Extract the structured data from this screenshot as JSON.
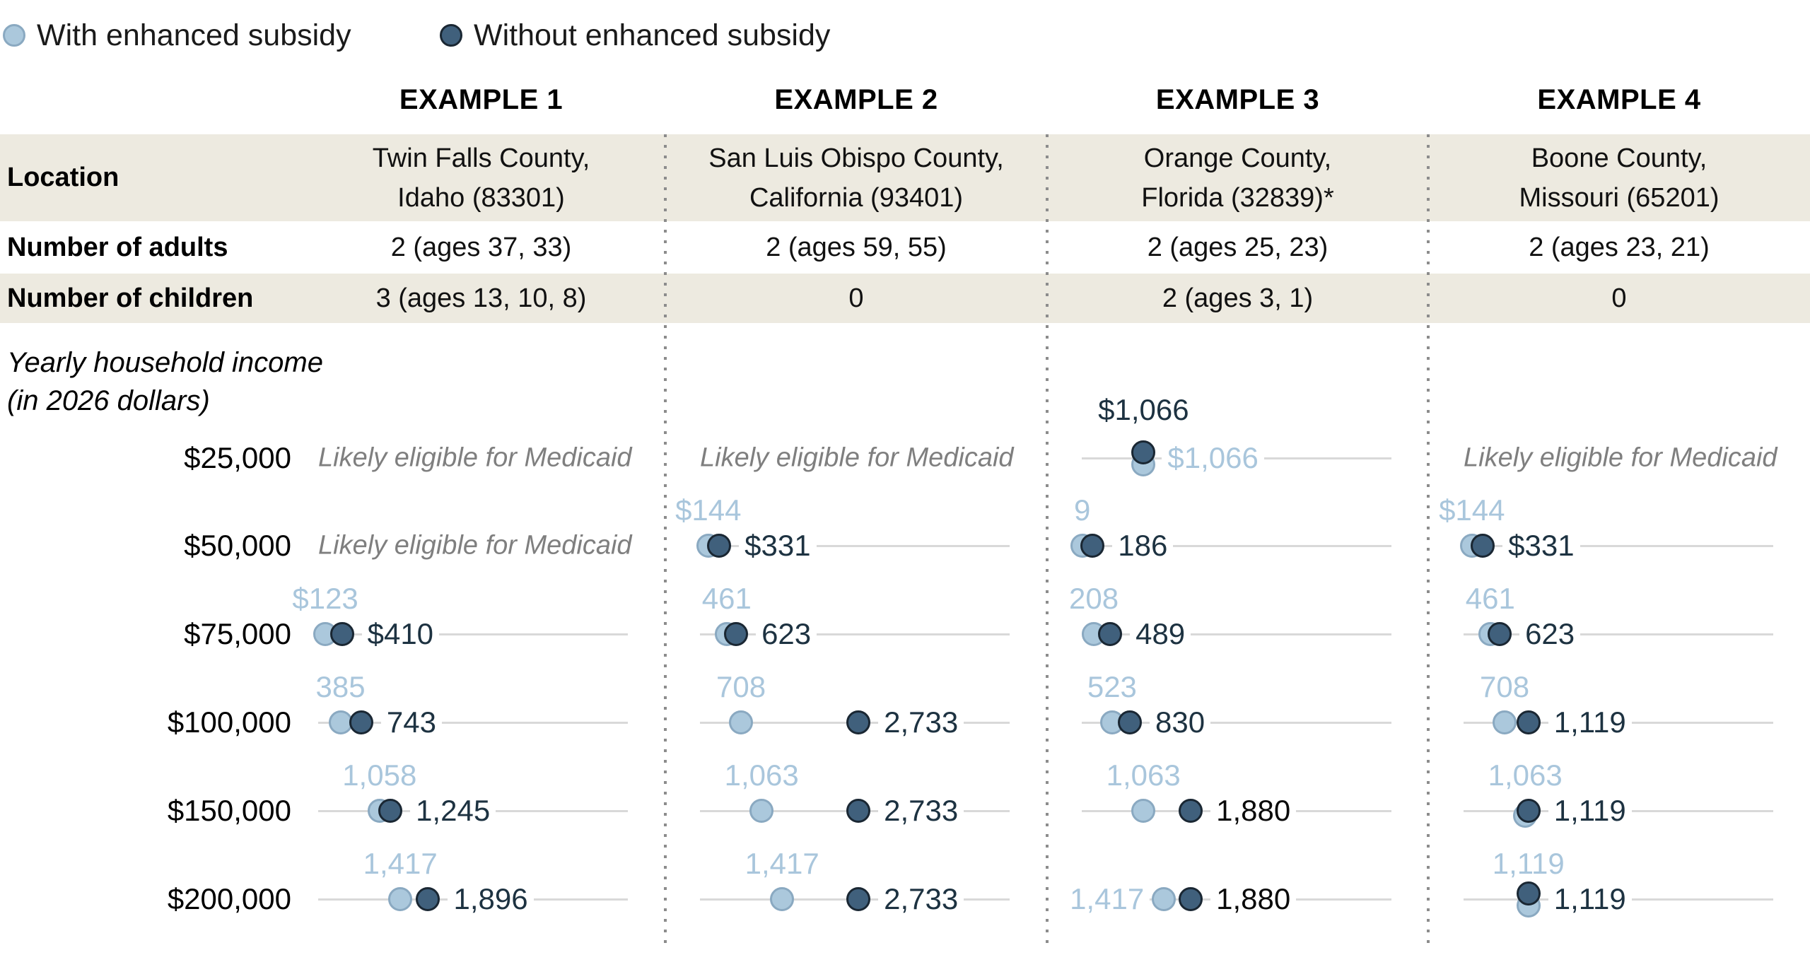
{
  "legend": {
    "with_label": "With enhanced subsidy",
    "without_label": "Without enhanced subsidy"
  },
  "medicaid_note": "Likely eligible for Medicaid",
  "axis_title_line1": "Yearly household income",
  "axis_title_line2": "(in 2026 dollars)",
  "colors": {
    "light_fill": "#abc8dc",
    "light_stroke": "#8aa9c1",
    "dark_fill": "#40607c",
    "dark_stroke": "#1a2733",
    "light_text": "#a9c6dc",
    "dark_text": "#1d3241",
    "black_text": "#0a0a0a",
    "medicaid_text": "#7f7f7f",
    "row_beige": "#edeae0",
    "gridline": "#d9d9d9",
    "separator": "#8c8c8c"
  },
  "table": {
    "headers": [
      "EXAMPLE 1",
      "EXAMPLE 2",
      "EXAMPLE 3",
      "EXAMPLE 4"
    ],
    "rows": [
      {
        "label": "Location",
        "values": [
          [
            "Twin Falls County,",
            "Idaho (83301)"
          ],
          [
            "San Luis Obispo County,",
            "California (93401)"
          ],
          [
            "Orange County,",
            "Florida (32839)*"
          ],
          [
            "Boone County,",
            "Missouri (65201)"
          ]
        ]
      },
      {
        "label": "Number of adults",
        "values": [
          "2 (ages 37, 33)",
          "2 (ages 59, 55)",
          "2 (ages 25, 23)",
          "2 (ages 23, 21)"
        ]
      },
      {
        "label": "Number of children",
        "values": [
          "3 (ages 13, 10, 8)",
          "0",
          "2 (ages 3, 1)",
          "0"
        ]
      }
    ]
  },
  "chart_data": {
    "type": "scatter",
    "title": "Monthly premium examples with and without enhanced subsidy",
    "income_levels": [
      "$25,000",
      "$50,000",
      "$75,000",
      "$100,000",
      "$150,000",
      "$200,000"
    ],
    "series": [
      {
        "name": "With enhanced subsidy",
        "color": "#abc8dc"
      },
      {
        "name": "Without enhanced subsidy",
        "color": "#40607c"
      }
    ],
    "examples": [
      {
        "name": "EXAMPLE 1",
        "points": [
          {
            "medicaid": true
          },
          {
            "medicaid": true
          },
          {
            "with": 123,
            "without": 410,
            "with_label": "$123",
            "without_label": "$410"
          },
          {
            "with": 385,
            "without": 743,
            "with_label": "385",
            "without_label": "743"
          },
          {
            "with": 1058,
            "without": 1245,
            "with_label": "1,058",
            "without_label": "1,245"
          },
          {
            "with": 1417,
            "without": 1896,
            "with_label": "1,417",
            "without_label": "1,896"
          }
        ]
      },
      {
        "name": "EXAMPLE 2",
        "points": [
          {
            "medicaid": true
          },
          {
            "with": 144,
            "without": 331,
            "with_label": "$144",
            "without_label": "$331"
          },
          {
            "with": 461,
            "without": 623,
            "with_label": "461",
            "without_label": "623"
          },
          {
            "with": 708,
            "without": 2733,
            "with_label": "708",
            "without_label": "2,733"
          },
          {
            "with": 1063,
            "without": 2733,
            "with_label": "1,063",
            "without_label": "2,733"
          },
          {
            "with": 1417,
            "without": 2733,
            "with_label": "1,417",
            "without_label": "2,733"
          }
        ]
      },
      {
        "name": "EXAMPLE 3",
        "points": [
          {
            "with": 1066,
            "without": 1066,
            "with_label": "$1,066",
            "without_label": "$1,066",
            "stack": "vertical",
            "with_label_pos": "right",
            "without_label_pos": "above"
          },
          {
            "with": 9,
            "without": 186,
            "with_label": "9",
            "without_label": "186"
          },
          {
            "with": 208,
            "without": 489,
            "with_label": "208",
            "without_label": "489"
          },
          {
            "with": 523,
            "without": 830,
            "with_label": "523",
            "without_label": "830"
          },
          {
            "with": 1063,
            "without": 1880,
            "with_label": "1,063",
            "without_label": "1,880",
            "without_label_color": "black"
          },
          {
            "with": 1417,
            "without": 1880,
            "with_label": "1,417",
            "without_label": "1,880",
            "with_label_pos": "left",
            "without_label_color": "black"
          }
        ]
      },
      {
        "name": "EXAMPLE 4",
        "points": [
          {
            "medicaid": true
          },
          {
            "with": 144,
            "without": 331,
            "with_label": "$144",
            "without_label": "$331"
          },
          {
            "with": 461,
            "without": 623,
            "with_label": "461",
            "without_label": "623"
          },
          {
            "with": 708,
            "without": 1119,
            "with_label": "708",
            "without_label": "1,119"
          },
          {
            "with": 1063,
            "without": 1119,
            "with_label": "1,063",
            "without_label": "1,119",
            "with_dy": 7
          },
          {
            "with": 1119,
            "without": 1119,
            "with_label": "1,119",
            "without_label": "1,119",
            "stack": "vertical"
          }
        ]
      }
    ]
  }
}
